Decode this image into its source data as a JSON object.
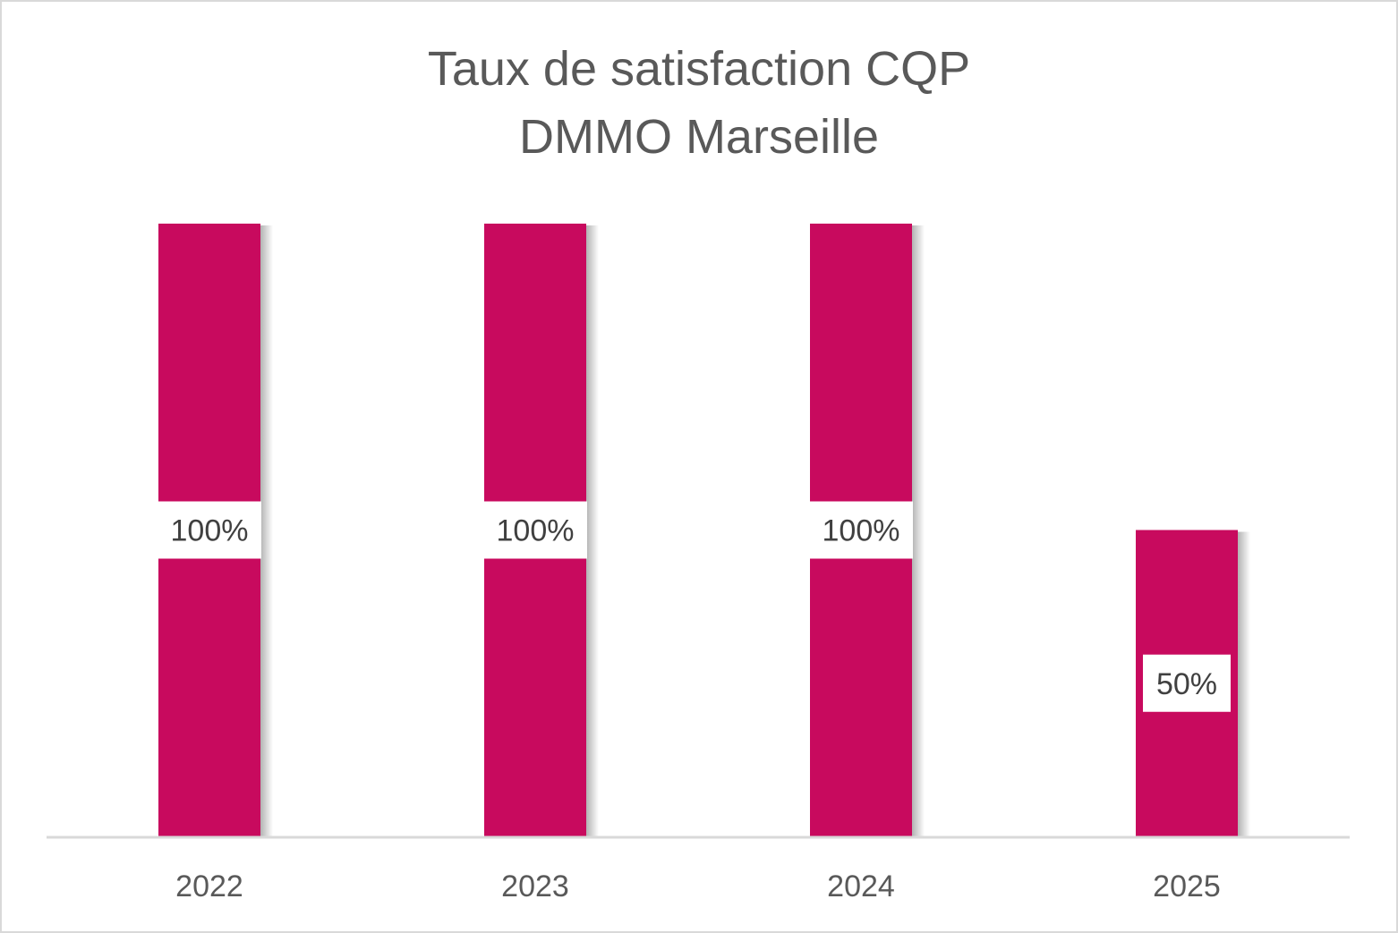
{
  "chart_data": {
    "type": "bar",
    "title": [
      "Taux de satisfaction CQP",
      "DMMO Marseille"
    ],
    "categories": [
      "2022",
      "2023",
      "2024",
      "2025"
    ],
    "values": [
      100,
      100,
      100,
      50
    ],
    "data_labels": [
      "100%",
      "100%",
      "100%",
      "50%"
    ],
    "xlabel": "",
    "ylabel": "",
    "ylim": [
      0,
      100
    ],
    "grid": false,
    "legend": "none",
    "colors": {
      "bar": "#C80A5E",
      "text": "#595959",
      "axis": "#D9D9D9"
    }
  }
}
